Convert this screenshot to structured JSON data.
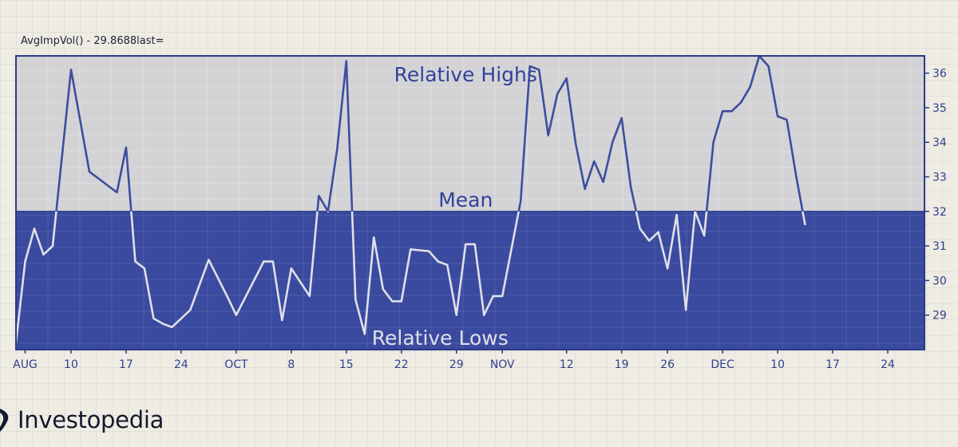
{
  "indicator_label": "AvgImpVol() - 29.8688last=",
  "brand": {
    "name": "Investopedia",
    "logo_icon": "investopedia-swoosh-icon"
  },
  "colors": {
    "background": "#efece4",
    "highs_zone": "#d3d3d6",
    "lows_zone": "#3a4a9f",
    "line_above_mean": "#3e4d9c",
    "line_below_mean": "#dfe0e8",
    "frame": "#2b3a86",
    "text_accent": "#32429a"
  },
  "chart_data": {
    "type": "line",
    "zones": {
      "upper_label": "Relative Highs",
      "mean_label": "Mean",
      "lower_label": "Relative Lows"
    },
    "mean": 32.0,
    "ylim": [
      28.0,
      36.5
    ],
    "yticks": [
      29,
      30,
      31,
      32,
      33,
      34,
      35,
      36
    ],
    "xlim": [
      0,
      99
    ],
    "xticks": [
      {
        "label": "AUG",
        "x": 1
      },
      {
        "label": "10",
        "x": 6
      },
      {
        "label": "17",
        "x": 12
      },
      {
        "label": "24",
        "x": 18
      },
      {
        "label": "OCT",
        "x": 24
      },
      {
        "label": "8",
        "x": 30
      },
      {
        "label": "15",
        "x": 36
      },
      {
        "label": "22",
        "x": 42
      },
      {
        "label": "29",
        "x": 48
      },
      {
        "label": "NOV",
        "x": 53
      },
      {
        "label": "12",
        "x": 60
      },
      {
        "label": "19",
        "x": 66
      },
      {
        "label": "26",
        "x": 71
      },
      {
        "label": "DEC",
        "x": 77
      },
      {
        "label": "10",
        "x": 83
      },
      {
        "label": "17",
        "x": 89
      },
      {
        "label": "24",
        "x": 95
      }
    ],
    "series": [
      {
        "points": [
          [
            0,
            28.2
          ],
          [
            1,
            30.55
          ],
          [
            2,
            31.5
          ],
          [
            3,
            30.75
          ],
          [
            4,
            31.0
          ],
          [
            6,
            36.1
          ],
          [
            8,
            33.15
          ],
          [
            10,
            32.75
          ],
          [
            11,
            32.55
          ],
          [
            12,
            33.85
          ],
          [
            13,
            30.55
          ],
          [
            14,
            30.35
          ],
          [
            15,
            28.9
          ],
          [
            16,
            28.75
          ],
          [
            17,
            28.65
          ],
          [
            18,
            28.9
          ],
          [
            19,
            29.15
          ],
          [
            21,
            30.6
          ],
          [
            23,
            29.55
          ],
          [
            24,
            29.0
          ],
          [
            27,
            30.55
          ],
          [
            28,
            30.55
          ],
          [
            29,
            28.85
          ],
          [
            30,
            30.35
          ],
          [
            32,
            29.55
          ],
          [
            33,
            32.45
          ],
          [
            34,
            32.0
          ],
          [
            35,
            33.8
          ],
          [
            36,
            36.35
          ],
          [
            37,
            29.45
          ],
          [
            38,
            28.45
          ],
          [
            39,
            31.25
          ],
          [
            40,
            29.75
          ],
          [
            41,
            29.4
          ],
          [
            42,
            29.4
          ],
          [
            43,
            30.9
          ],
          [
            45,
            30.85
          ],
          [
            46,
            30.55
          ],
          [
            47,
            30.45
          ],
          [
            48,
            29.0
          ],
          [
            49,
            31.05
          ],
          [
            50,
            31.05
          ],
          [
            51,
            29.0
          ],
          [
            52,
            29.55
          ],
          [
            53,
            29.55
          ],
          [
            55,
            32.3
          ],
          [
            56,
            36.2
          ],
          [
            57,
            36.1
          ],
          [
            58,
            34.2
          ],
          [
            59,
            35.4
          ],
          [
            60,
            35.85
          ],
          [
            61,
            33.95
          ],
          [
            62,
            32.65
          ],
          [
            63,
            33.45
          ],
          [
            64,
            32.85
          ],
          [
            65,
            34.0
          ],
          [
            66,
            34.7
          ],
          [
            67,
            32.7
          ],
          [
            68,
            31.5
          ],
          [
            69,
            31.15
          ],
          [
            70,
            31.4
          ],
          [
            71,
            30.35
          ],
          [
            72,
            31.9
          ],
          [
            73,
            29.15
          ],
          [
            74,
            32.0
          ],
          [
            75,
            31.3
          ],
          [
            76,
            34.0
          ],
          [
            77,
            34.9
          ],
          [
            78,
            34.9
          ],
          [
            79,
            35.15
          ],
          [
            80,
            35.6
          ],
          [
            81,
            36.5
          ],
          [
            82,
            36.2
          ],
          [
            83,
            34.75
          ],
          [
            84,
            34.65
          ],
          [
            85,
            33.05
          ],
          [
            86,
            31.6
          ]
        ]
      }
    ]
  }
}
